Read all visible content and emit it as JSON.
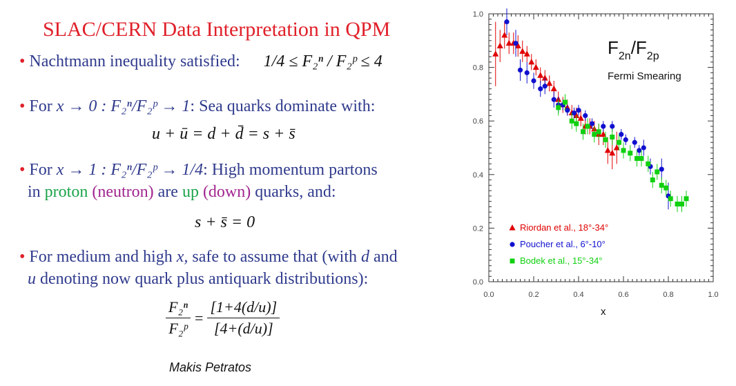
{
  "slide": {
    "title": "SLAC/CERN Data Interpretation in QPM",
    "bullets": {
      "b1_text": "Nachtmann inequality satisfied:",
      "b1_formula": "1/4 ≤ F₂ⁿ / F₂ᵖ ≤ 4",
      "b2_prefix": "For ",
      "b2_limit": "x → 0 : F₂ⁿ/F₂ᵖ → 1",
      "b2_text": ": Sea quarks dominate with:",
      "eq1": "u + ū = d + d̄ = s + s̄",
      "b3_prefix": "For ",
      "b3_limit": "x → 1 : F₂ⁿ/F₂ᵖ → 1/4",
      "b3_text": ": High momentum partons",
      "b3_line2_a": "in ",
      "b3_proton": "proton",
      "b3_neutron": "(neutron)",
      "b3_are": " are ",
      "b3_up": "up",
      "b3_down": "(down)",
      "b3_tail": " quarks, and:",
      "eq2": "s + s̄ = 0",
      "b4_line1_a": "For medium and high ",
      "b4_x": "x,",
      "b4_line1_b": " safe to assume that (with ",
      "b4_d": "d",
      "b4_and": " and",
      "b4_u": "u",
      "b4_line2": " denoting now quark plus antiquark distributions):",
      "frac_lhs_num": "F₂ⁿ",
      "frac_lhs_den": "F₂ᵖ",
      "equals": "=",
      "frac_rhs_num": "[1+4(d/u)]",
      "frac_rhs_den": "[4+(d/u)]"
    },
    "author": "Makis Petratos"
  },
  "colors": {
    "title": "#e0202a",
    "text": "#2f3a8c",
    "proton_up": "#1ba34a",
    "neutron_down": "#a0248f",
    "riordan": "#e00000",
    "poucher": "#1010d0",
    "bodek": "#10d010"
  },
  "chart_data": {
    "type": "scatter",
    "title": "F2n/F2p",
    "subtitle": "Fermi Smearing",
    "xlabel": "x",
    "ylabel": "",
    "xlim": [
      0.0,
      1.0
    ],
    "ylim": [
      0.0,
      1.0
    ],
    "xticks": [
      "0.0",
      "0.2",
      "0.4",
      "0.6",
      "0.8",
      "1.0"
    ],
    "yticks": [
      "0.0",
      "0.2",
      "0.4",
      "0.6",
      "0.8",
      "1.0"
    ],
    "legend_position": "bottom-left",
    "series": [
      {
        "name": "Riordan et al., 18°-34°",
        "marker": "triangle",
        "color": "#e00000",
        "points": [
          [
            0.03,
            0.85
          ],
          [
            0.05,
            0.88
          ],
          [
            0.07,
            0.92
          ],
          [
            0.09,
            0.89
          ],
          [
            0.11,
            0.89
          ],
          [
            0.13,
            0.88
          ],
          [
            0.15,
            0.86
          ],
          [
            0.17,
            0.85
          ],
          [
            0.19,
            0.82
          ],
          [
            0.21,
            0.8
          ],
          [
            0.23,
            0.77
          ],
          [
            0.25,
            0.76
          ],
          [
            0.27,
            0.74
          ],
          [
            0.29,
            0.72
          ],
          [
            0.31,
            0.68
          ],
          [
            0.33,
            0.66
          ],
          [
            0.35,
            0.65
          ],
          [
            0.37,
            0.63
          ],
          [
            0.39,
            0.62
          ],
          [
            0.41,
            0.61
          ],
          [
            0.43,
            0.58
          ],
          [
            0.45,
            0.58
          ],
          [
            0.47,
            0.57
          ],
          [
            0.49,
            0.55
          ],
          [
            0.51,
            0.55
          ],
          [
            0.53,
            0.49
          ],
          [
            0.55,
            0.48
          ],
          [
            0.57,
            0.5
          ]
        ],
        "errors": [
          0.12,
          0.06,
          0.05,
          0.04,
          0.04,
          0.04,
          0.04,
          0.03,
          0.03,
          0.03,
          0.03,
          0.03,
          0.03,
          0.03,
          0.03,
          0.03,
          0.03,
          0.03,
          0.03,
          0.03,
          0.03,
          0.03,
          0.03,
          0.04,
          0.04,
          0.05,
          0.06,
          0.06
        ]
      },
      {
        "name": "Poucher et al., 6°-10°",
        "marker": "circle",
        "color": "#1010d0",
        "points": [
          [
            0.08,
            0.97
          ],
          [
            0.12,
            0.89
          ],
          [
            0.14,
            0.79
          ],
          [
            0.17,
            0.78
          ],
          [
            0.2,
            0.75
          ],
          [
            0.23,
            0.72
          ],
          [
            0.25,
            0.73
          ],
          [
            0.29,
            0.68
          ],
          [
            0.31,
            0.66
          ],
          [
            0.33,
            0.66
          ],
          [
            0.35,
            0.64
          ],
          [
            0.38,
            0.63
          ],
          [
            0.4,
            0.64
          ],
          [
            0.43,
            0.62
          ],
          [
            0.46,
            0.59
          ],
          [
            0.51,
            0.58
          ],
          [
            0.55,
            0.58
          ],
          [
            0.59,
            0.55
          ],
          [
            0.61,
            0.53
          ],
          [
            0.65,
            0.52
          ],
          [
            0.67,
            0.49
          ],
          [
            0.69,
            0.5
          ],
          [
            0.72,
            0.43
          ],
          [
            0.77,
            0.42
          ],
          [
            0.8,
            0.32
          ]
        ],
        "errors": [
          0.05,
          0.05,
          0.04,
          0.04,
          0.03,
          0.03,
          0.03,
          0.03,
          0.03,
          0.02,
          0.02,
          0.02,
          0.02,
          0.02,
          0.02,
          0.02,
          0.02,
          0.02,
          0.02,
          0.02,
          0.02,
          0.03,
          0.03,
          0.04,
          0.05
        ]
      },
      {
        "name": "Bodek et al., 15°-34°",
        "marker": "square",
        "color": "#10d010",
        "points": [
          [
            0.31,
            0.65
          ],
          [
            0.34,
            0.67
          ],
          [
            0.37,
            0.6
          ],
          [
            0.39,
            0.59
          ],
          [
            0.42,
            0.56
          ],
          [
            0.44,
            0.58
          ],
          [
            0.47,
            0.55
          ],
          [
            0.49,
            0.56
          ],
          [
            0.52,
            0.53
          ],
          [
            0.55,
            0.54
          ],
          [
            0.58,
            0.52
          ],
          [
            0.6,
            0.49
          ],
          [
            0.63,
            0.48
          ],
          [
            0.66,
            0.46
          ],
          [
            0.68,
            0.46
          ],
          [
            0.71,
            0.44
          ],
          [
            0.73,
            0.38
          ],
          [
            0.75,
            0.41
          ],
          [
            0.77,
            0.36
          ],
          [
            0.79,
            0.35
          ],
          [
            0.81,
            0.31
          ],
          [
            0.84,
            0.29
          ],
          [
            0.86,
            0.29
          ],
          [
            0.88,
            0.31
          ]
        ],
        "errors": [
          0.03,
          0.03,
          0.03,
          0.03,
          0.03,
          0.03,
          0.03,
          0.03,
          0.03,
          0.03,
          0.03,
          0.03,
          0.03,
          0.03,
          0.03,
          0.03,
          0.03,
          0.03,
          0.03,
          0.03,
          0.03,
          0.03,
          0.03,
          0.03
        ]
      }
    ]
  }
}
